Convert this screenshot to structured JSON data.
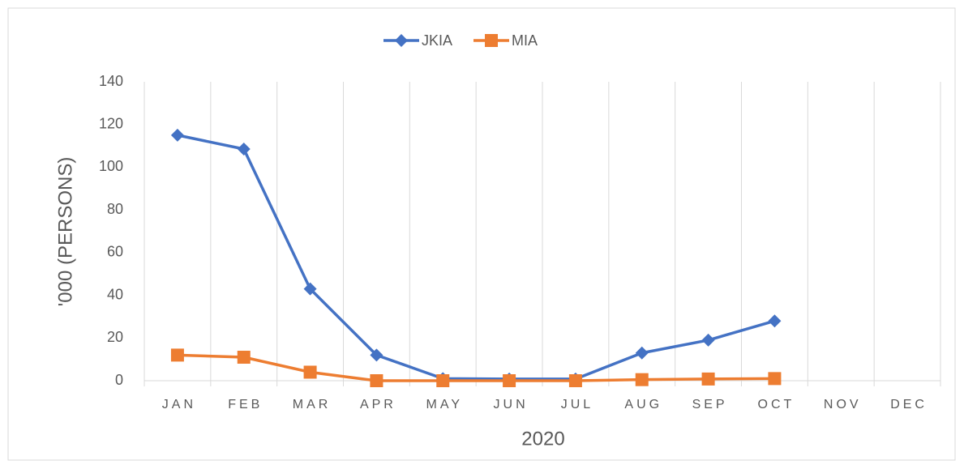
{
  "chart_data": {
    "type": "line",
    "categories": [
      "JAN",
      "FEB",
      "MAR",
      "APR",
      "MAY",
      "JUN",
      "JUL",
      "AUG",
      "SEP",
      "OCT",
      "NOV",
      "DEC"
    ],
    "series": [
      {
        "name": "JKIA",
        "color": "#4472c4",
        "marker": "diamond",
        "values": [
          115,
          108.5,
          43,
          12,
          1,
          0.8,
          0.8,
          13,
          19,
          28,
          null,
          null
        ]
      },
      {
        "name": "MIA",
        "color": "#ed7d31",
        "marker": "square",
        "values": [
          12,
          11,
          4,
          0,
          0,
          0,
          0,
          0.5,
          0.8,
          1,
          null,
          null
        ]
      }
    ],
    "xlabel": "2020",
    "ylabel": "'000 (PERSONS)",
    "ylim": [
      0,
      140
    ],
    "yticks": [
      0,
      20,
      40,
      60,
      80,
      100,
      120,
      140
    ],
    "grid": true,
    "legend": "top"
  }
}
